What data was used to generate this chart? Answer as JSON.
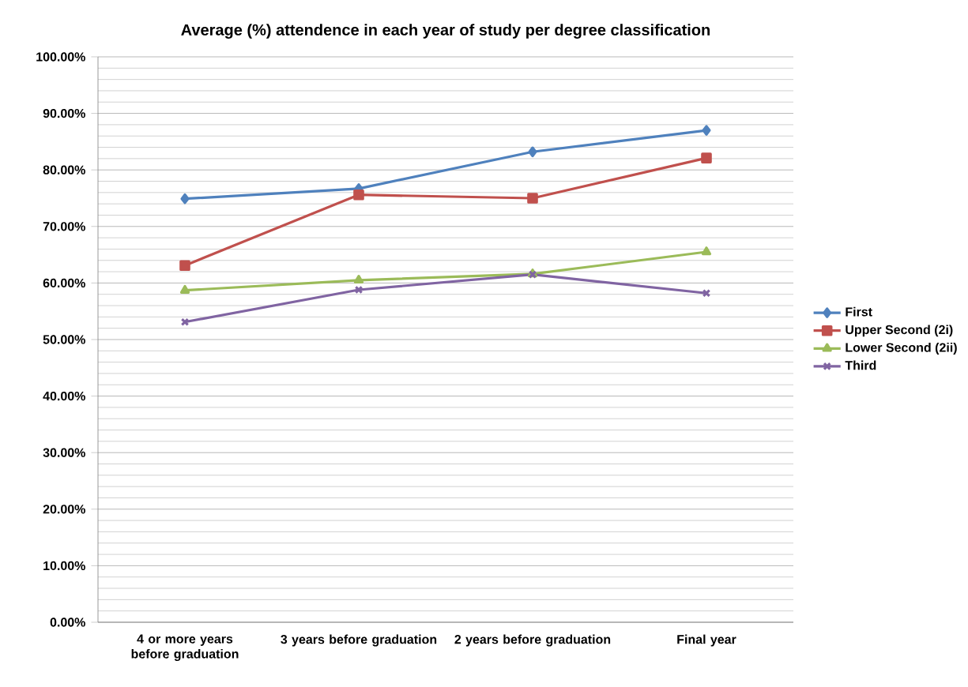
{
  "chart_data": {
    "type": "line",
    "title": "Average (%) attendence in each year of study per degree classification",
    "categories": [
      "4 or more years before graduation",
      "3 years before graduation",
      "2 years before graduation",
      "Final year"
    ],
    "series": [
      {
        "name": "First",
        "color": "#4f81bd",
        "marker": "diamond",
        "values": [
          74.9,
          76.7,
          83.2,
          87.0
        ]
      },
      {
        "name": "Upper Second (2i)",
        "color": "#c0504d",
        "marker": "square",
        "values": [
          63.1,
          75.6,
          75.0,
          82.1
        ]
      },
      {
        "name": "Lower Second (2ii)",
        "color": "#9bbb59",
        "marker": "triangle",
        "values": [
          58.7,
          60.5,
          61.6,
          65.5
        ]
      },
      {
        "name": "Third",
        "color": "#8064a2",
        "marker": "cross",
        "values": [
          53.1,
          58.8,
          61.5,
          58.2
        ]
      }
    ],
    "ylim": [
      0,
      100
    ],
    "yticks": [
      {
        "value": 0,
        "label": "0.00%"
      },
      {
        "value": 10,
        "label": "10.00%"
      },
      {
        "value": 20,
        "label": "20.00%"
      },
      {
        "value": 30,
        "label": "30.00%"
      },
      {
        "value": 40,
        "label": "40.00%"
      },
      {
        "value": 50,
        "label": "50.00%"
      },
      {
        "value": 60,
        "label": "60.00%"
      },
      {
        "value": 70,
        "label": "70.00%"
      },
      {
        "value": 80,
        "label": "80.00%"
      },
      {
        "value": 90,
        "label": "90.00%"
      },
      {
        "value": 100,
        "label": "100.00%"
      }
    ],
    "grid": "y",
    "legend": "right",
    "line_style": "solid"
  }
}
